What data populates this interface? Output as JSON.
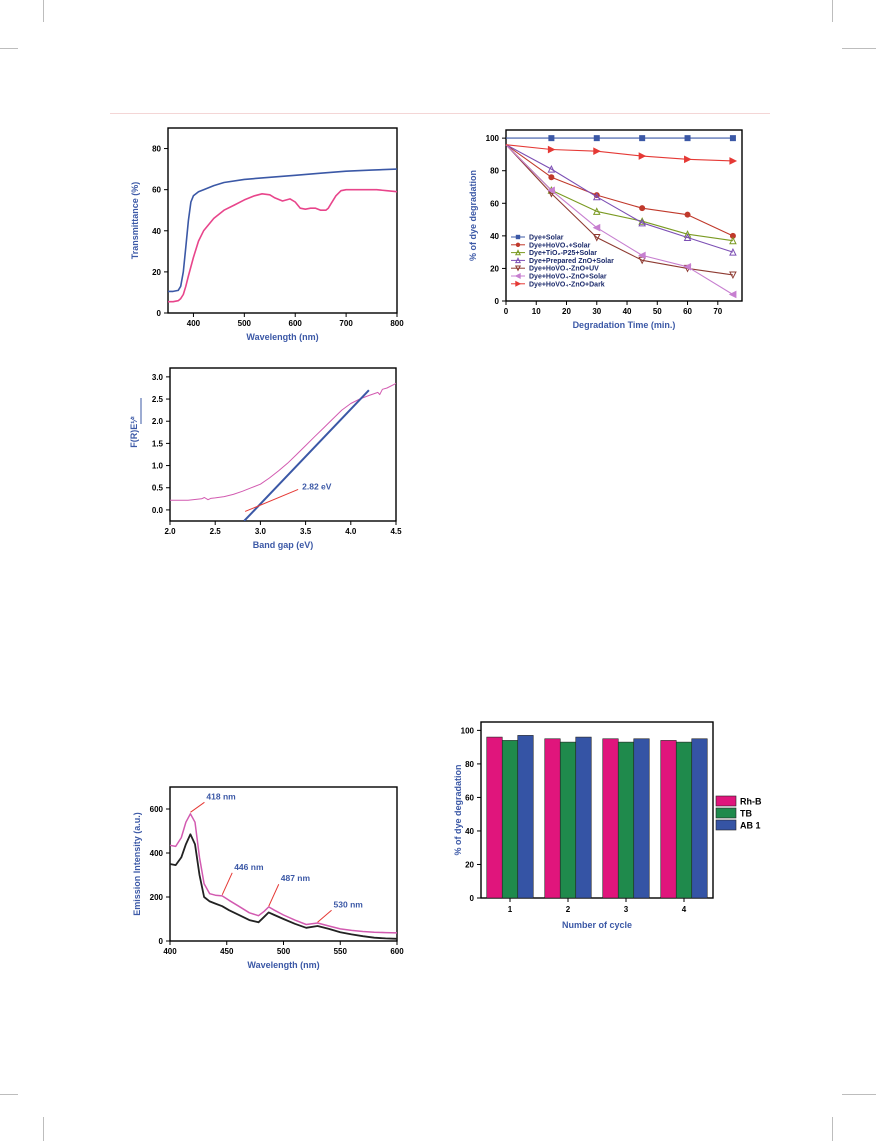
{
  "chart_data": [
    {
      "type": "line",
      "xlabel": "Wavelength (nm)",
      "ylabel": "Transmittance (%)",
      "xlim": [
        350,
        800
      ],
      "ylim": [
        0,
        90
      ],
      "xticks": [
        "400",
        "500",
        "600",
        "700",
        "800"
      ],
      "yticks": [
        "0",
        "20",
        "40",
        "60",
        "80"
      ],
      "series": [
        {
          "color": "#3b58a6",
          "x": [
            350,
            360,
            370,
            375,
            380,
            385,
            390,
            395,
            400,
            410,
            420,
            440,
            460,
            500,
            550,
            600,
            650,
            700,
            750,
            800
          ],
          "y": [
            10.5,
            10.5,
            11,
            13,
            20,
            32,
            45,
            54,
            57,
            59,
            60,
            62,
            63.5,
            65,
            66,
            67,
            68,
            69,
            69.5,
            70
          ]
        },
        {
          "color": "#e8458b",
          "x": [
            350,
            360,
            370,
            375,
            380,
            385,
            390,
            400,
            410,
            420,
            440,
            460,
            480,
            500,
            520,
            535,
            550,
            560,
            575,
            590,
            600,
            610,
            620,
            630,
            640,
            650,
            660,
            665,
            670,
            680,
            690,
            700,
            720,
            740,
            760,
            780,
            800
          ],
          "y": [
            5.5,
            5.5,
            6,
            7,
            9,
            13,
            18,
            27,
            35,
            40,
            46,
            50,
            52.5,
            55,
            57,
            58,
            57.5,
            56,
            54.5,
            55.5,
            54,
            51,
            50.5,
            51,
            51,
            50,
            50,
            51,
            53,
            57,
            59.5,
            60,
            60,
            60,
            60,
            59.5,
            59
          ]
        }
      ]
    },
    {
      "type": "line",
      "xlabel": "Degradation Time (min.)",
      "ylabel": "% of dye degradation",
      "xlim": [
        0,
        78
      ],
      "ylim": [
        0,
        105
      ],
      "xticks": [
        "0",
        "10",
        "20",
        "30",
        "40",
        "50",
        "60",
        "70"
      ],
      "yticks": [
        "0",
        "20",
        "40",
        "60",
        "80",
        "100"
      ],
      "x": [
        0,
        15,
        30,
        45,
        60,
        75
      ],
      "series": [
        {
          "name": "Dye+Solar",
          "color": "#3b58a6",
          "marker": "square",
          "values": [
            100,
            100,
            100,
            100,
            100,
            100
          ]
        },
        {
          "name": "Dye+HoVO₄+Solar",
          "color": "#c0392b",
          "marker": "circle",
          "values": [
            96,
            76,
            65,
            57,
            53,
            40
          ]
        },
        {
          "name": "Dye+TiO₂-P25+Solar",
          "color": "#7a9a22",
          "marker": "triangle-up",
          "values": [
            96,
            68,
            55,
            49,
            41,
            37
          ]
        },
        {
          "name": "Dye+Prepared ZnO+Solar",
          "color": "#7c4fb4",
          "marker": "triangle-up",
          "values": [
            96,
            81,
            64,
            48,
            39,
            30
          ]
        },
        {
          "name": "Dye+HoVO₄-ZnO+UV",
          "color": "#8e3b32",
          "marker": "triangle-down",
          "values": [
            96,
            66,
            39,
            25,
            20,
            16
          ]
        },
        {
          "name": "Dye+HoVO₄-ZnO+Solar",
          "color": "#c77fd0",
          "marker": "triangle-left",
          "values": [
            96,
            68,
            45,
            28,
            21,
            4
          ]
        },
        {
          "name": "Dye+HoVO₄-ZnO+Dark",
          "color": "#e53935",
          "marker": "triangle-right",
          "values": [
            96,
            93,
            92,
            89,
            87,
            86
          ]
        }
      ]
    },
    {
      "type": "line",
      "xlabel": "Band gap (eV)",
      "ylabel": "F(R)E¹⁄²",
      "xlim": [
        2.0,
        4.5
      ],
      "ylim": [
        -0.25,
        3.2
      ],
      "xticks": [
        "2.0",
        "2.5",
        "3.0",
        "3.5",
        "4.0",
        "4.5"
      ],
      "yticks": [
        "0.0",
        "0.5",
        "1.0",
        "1.5",
        "2.0",
        "2.5",
        "3.0"
      ],
      "annotation": "2.82 eV",
      "series": [
        {
          "color": "#d25ab0",
          "x": [
            2.0,
            2.2,
            2.35,
            2.38,
            2.42,
            2.45,
            2.5,
            2.6,
            2.7,
            2.8,
            2.9,
            3.0,
            3.1,
            3.2,
            3.3,
            3.4,
            3.5,
            3.6,
            3.7,
            3.8,
            3.9,
            4.0,
            4.1,
            4.2,
            4.3,
            4.32,
            4.35,
            4.4,
            4.5
          ],
          "y": [
            0.22,
            0.22,
            0.25,
            0.28,
            0.23,
            0.26,
            0.27,
            0.3,
            0.35,
            0.42,
            0.5,
            0.58,
            0.72,
            0.88,
            1.05,
            1.25,
            1.45,
            1.65,
            1.85,
            2.05,
            2.25,
            2.4,
            2.5,
            2.58,
            2.65,
            2.6,
            2.72,
            2.75,
            2.85
          ]
        },
        {
          "color": "#3b58a6",
          "x": [
            2.82,
            4.2
          ],
          "y": [
            -0.25,
            2.7
          ]
        }
      ]
    },
    {
      "type": "line",
      "xlabel": "Wavelength (nm)",
      "ylabel": "Emission Intensity (a.u.)",
      "xlim": [
        400,
        600
      ],
      "ylim": [
        0,
        700
      ],
      "xticks": [
        "400",
        "450",
        "500",
        "550",
        "600"
      ],
      "yticks": [
        "0",
        "200",
        "400",
        "600"
      ],
      "annotations": [
        "418 nm",
        "446 nm",
        "487 nm",
        "530 nm"
      ],
      "series": [
        {
          "color": "#d25ab0",
          "x": [
            400,
            405,
            410,
            414,
            418,
            422,
            426,
            430,
            435,
            440,
            446,
            452,
            460,
            470,
            478,
            483,
            487,
            492,
            500,
            510,
            520,
            530,
            540,
            550,
            560,
            570,
            580,
            590,
            600
          ],
          "y": [
            435,
            430,
            470,
            540,
            578,
            540,
            380,
            260,
            215,
            208,
            205,
            185,
            160,
            128,
            115,
            135,
            155,
            140,
            118,
            95,
            75,
            82,
            68,
            55,
            48,
            43,
            40,
            38,
            37
          ]
        },
        {
          "color": "#222222",
          "x": [
            400,
            405,
            410,
            414,
            418,
            422,
            426,
            430,
            435,
            440,
            446,
            452,
            460,
            470,
            478,
            483,
            487,
            492,
            500,
            510,
            520,
            530,
            540,
            550,
            560,
            570,
            580,
            590,
            600
          ],
          "y": [
            350,
            345,
            380,
            440,
            485,
            440,
            300,
            200,
            180,
            170,
            158,
            140,
            120,
            95,
            85,
            110,
            130,
            118,
            100,
            78,
            60,
            68,
            55,
            40,
            30,
            22,
            15,
            12,
            10
          ]
        }
      ]
    },
    {
      "type": "bar",
      "xlabel": "Number of cycle",
      "ylabel": "% of dye degradation",
      "ylim": [
        0,
        105
      ],
      "categories": [
        "1",
        "2",
        "3",
        "4"
      ],
      "yticks": [
        "0",
        "20",
        "40",
        "60",
        "80",
        "100"
      ],
      "series": [
        {
          "name": "Rh-B",
          "color": "#e0157c",
          "values": [
            96,
            95,
            95,
            94
          ]
        },
        {
          "name": "TB",
          "color": "#1f8a4c",
          "values": [
            94,
            93,
            93,
            93
          ]
        },
        {
          "name": "AB 1",
          "color": "#3554a5",
          "values": [
            97,
            96,
            95,
            95
          ]
        }
      ]
    }
  ]
}
